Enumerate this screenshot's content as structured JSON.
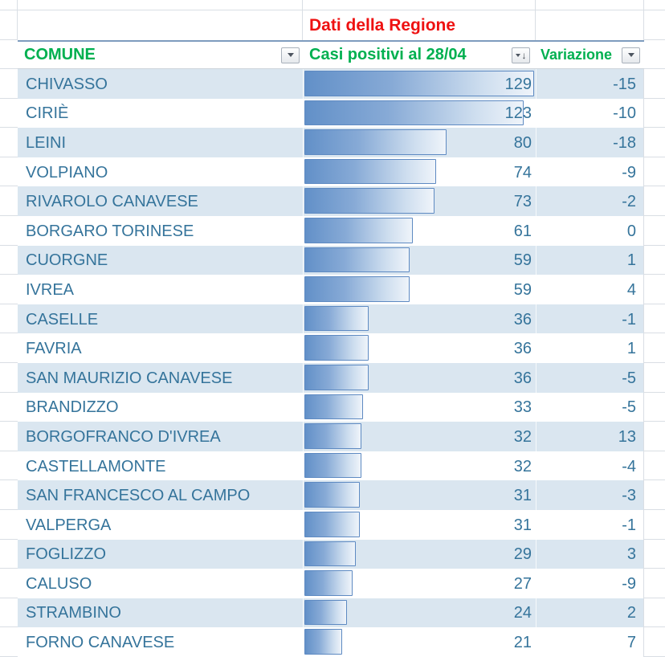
{
  "title_row": {
    "label": "Dati della Regione"
  },
  "columns": {
    "comune": {
      "label": "COMUNE",
      "filter_icon": "filter-dropdown-icon"
    },
    "casi": {
      "label": "Casi positivi al 28/04",
      "filter_icon": "sort-descending-filter-icon"
    },
    "variazione": {
      "label": "Variazione",
      "filter_icon": "filter-dropdown-icon"
    }
  },
  "table": {
    "bar_max": 129,
    "rows": [
      {
        "comune": "CHIVASSO",
        "casi": 129,
        "variazione": -15
      },
      {
        "comune": "CIRIÈ",
        "casi": 123,
        "variazione": -10
      },
      {
        "comune": "LEINI",
        "casi": 80,
        "variazione": -18
      },
      {
        "comune": "VOLPIANO",
        "casi": 74,
        "variazione": -9
      },
      {
        "comune": "RIVAROLO CANAVESE",
        "casi": 73,
        "variazione": -2
      },
      {
        "comune": "BORGARO TORINESE",
        "casi": 61,
        "variazione": 0
      },
      {
        "comune": "CUORGNE",
        "casi": 59,
        "variazione": 1
      },
      {
        "comune": "IVREA",
        "casi": 59,
        "variazione": 4
      },
      {
        "comune": "CASELLE",
        "casi": 36,
        "variazione": -1
      },
      {
        "comune": "FAVRIA",
        "casi": 36,
        "variazione": 1
      },
      {
        "comune": "SAN MAURIZIO CANAVESE",
        "casi": 36,
        "variazione": -5
      },
      {
        "comune": "BRANDIZZO",
        "casi": 33,
        "variazione": -5
      },
      {
        "comune": "BORGOFRANCO D'IVREA",
        "casi": 32,
        "variazione": 13
      },
      {
        "comune": "CASTELLAMONTE",
        "casi": 32,
        "variazione": -4
      },
      {
        "comune": "SAN FRANCESCO AL CAMPO",
        "casi": 31,
        "variazione": -3
      },
      {
        "comune": "VALPERGA",
        "casi": 31,
        "variazione": -1
      },
      {
        "comune": "FOGLIZZO",
        "casi": 29,
        "variazione": 3
      },
      {
        "comune": "CALUSO",
        "casi": 27,
        "variazione": -9
      },
      {
        "comune": "STRAMBINO",
        "casi": 24,
        "variazione": 2
      },
      {
        "comune": "FORNO CANAVESE",
        "casi": 21,
        "variazione": 7
      }
    ]
  },
  "colors": {
    "title_red": "#EE1111",
    "header_green": "#00B050",
    "cell_text_blue": "#35749B",
    "band_blue": "#DAE6F0",
    "bar_fill": "#6290C8",
    "bar_border": "#5E8AC2",
    "table_top_border": "#7E9CBE",
    "gridline": "#D9DEE4"
  }
}
